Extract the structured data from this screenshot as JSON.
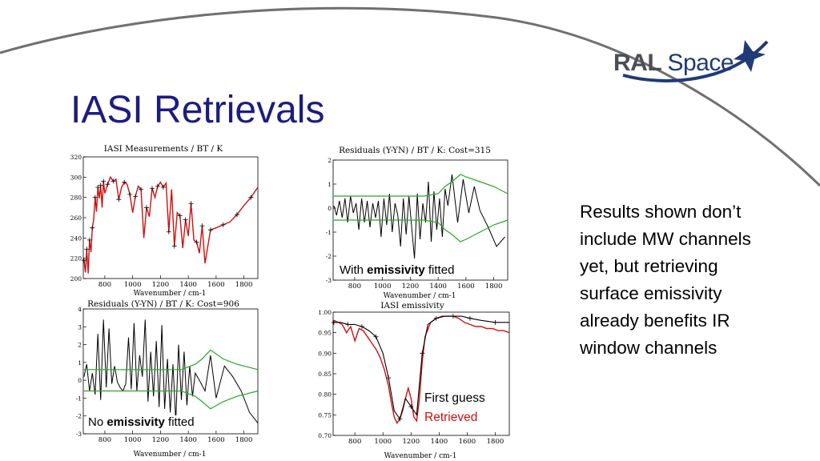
{
  "slide": {
    "title": "IASI Retrievals",
    "logo": {
      "word1": "RAL",
      "word2": "Space"
    },
    "body_text": "Results shown don’t include MW channels yet, but retrieving surface emissivity already benefits IR window channels"
  },
  "panels": {
    "measurements": {
      "title": "IASI Measurements / BT / K",
      "xlabel": "Wavenumber / cm-1"
    },
    "residuals_with": {
      "title": "Residuals (Y-YN) / BT / K: Cost=315",
      "xlabel": "Wavenumber / cm-1",
      "note_pre": "With ",
      "note_bold": "emissivity",
      "note_post": " fitted"
    },
    "residuals_no": {
      "title": "Residuals (Y-YN) / BT / K: Cost=906",
      "xlabel": "Wavenumber / cm-1",
      "note_pre": "No ",
      "note_bold": "emissivity",
      "note_post": " fitted"
    },
    "emissivity": {
      "title": "IASI emissivity",
      "xlabel": "Wavenumber / cm-1",
      "legend_first": "First guess",
      "legend_retrieved": "Retrieved"
    }
  },
  "colors": {
    "title": "#1c1c80",
    "red": "#cc1111",
    "green": "#22aa22",
    "black": "#000000"
  },
  "chart_data": [
    {
      "type": "line",
      "title": "IASI Measurements / BT / K",
      "xlabel": "Wavenumber / cm-1",
      "xlim": [
        645,
        1900
      ],
      "ylim": [
        200,
        320
      ],
      "xticks": [
        800,
        1000,
        1200,
        1400,
        1600,
        1800
      ],
      "yticks": [
        200,
        220,
        240,
        260,
        280,
        300,
        320
      ],
      "series": [
        {
          "x": [
            650,
            660,
            670,
            680,
            690,
            700,
            710,
            720,
            730,
            740,
            750,
            760,
            770,
            780,
            790,
            800,
            820,
            840,
            860,
            880,
            900,
            920,
            940,
            960,
            980,
            1000,
            1020,
            1040,
            1060,
            1080,
            1100,
            1120,
            1140,
            1160,
            1180,
            1200,
            1220,
            1240,
            1260,
            1280,
            1300,
            1320,
            1340,
            1360,
            1380,
            1400,
            1420,
            1440,
            1460,
            1480,
            1500,
            1520,
            1560,
            1600,
            1650,
            1700,
            1750,
            1800,
            1850,
            1900
          ],
          "values": [
            218,
            206,
            229,
            205,
            238,
            226,
            250,
            258,
            280,
            266,
            290,
            279,
            292,
            270,
            296,
            284,
            293,
            300,
            296,
            298,
            278,
            290,
            295,
            293,
            283,
            265,
            281,
            291,
            288,
            240,
            270,
            261,
            289,
            280,
            291,
            295,
            290,
            294,
            246,
            288,
            232,
            265,
            262,
            230,
            258,
            242,
            274,
            238,
            236,
            225,
            252,
            215,
            248,
            250,
            253,
            256,
            263,
            272,
            280,
            290
          ]
        }
      ]
    },
    {
      "type": "line",
      "title": "Residuals (Y-YN) / BT / K: Cost=315",
      "xlabel": "Wavenumber / cm-1",
      "xlim": [
        645,
        1900
      ],
      "ylim": [
        -3,
        2
      ],
      "xticks": [
        800,
        1000,
        1200,
        1400,
        1600,
        1800
      ],
      "yticks": [
        -3,
        -2,
        -1,
        0,
        1,
        2
      ],
      "series": [
        {
          "name": "residual",
          "x": [
            650,
            670,
            690,
            710,
            730,
            750,
            770,
            790,
            810,
            830,
            850,
            870,
            890,
            910,
            930,
            950,
            970,
            990,
            1010,
            1030,
            1050,
            1070,
            1090,
            1110,
            1130,
            1150,
            1170,
            1190,
            1210,
            1230,
            1250,
            1270,
            1290,
            1310,
            1330,
            1350,
            1370,
            1390,
            1410,
            1430,
            1450,
            1470,
            1500,
            1540,
            1580,
            1620,
            1660,
            1700,
            1760,
            1820,
            1880
          ],
          "values": [
            0.1,
            -0.3,
            0.3,
            -0.4,
            0.4,
            -0.6,
            0.5,
            -0.2,
            0.2,
            -0.9,
            0.4,
            -0.6,
            0.3,
            -0.8,
            0.2,
            -0.4,
            0.3,
            -1.2,
            0.4,
            -0.7,
            0.6,
            -1.0,
            0.2,
            -0.3,
            -1.6,
            0.4,
            -1.1,
            0.5,
            -0.8,
            -2.1,
            0.6,
            -1.3,
            0.2,
            -0.6,
            1.1,
            -1.4,
            0.7,
            -0.9,
            0.4,
            -1.2,
            0.8,
            0.1,
            1.4,
            -0.6,
            1.2,
            -0.2,
            0.9,
            -0.1,
            -0.8,
            -1.6,
            -1.2
          ]
        },
        {
          "name": "upper",
          "x": [
            650,
            800,
            1000,
            1200,
            1300,
            1400,
            1450,
            1500,
            1560,
            1600,
            1700,
            1800,
            1900
          ],
          "values": [
            0.5,
            0.5,
            0.5,
            0.5,
            0.5,
            0.6,
            0.9,
            1.1,
            1.4,
            1.3,
            1.1,
            0.9,
            0.6
          ]
        },
        {
          "name": "lower",
          "x": [
            650,
            800,
            1000,
            1200,
            1300,
            1400,
            1450,
            1500,
            1560,
            1600,
            1700,
            1800,
            1900
          ],
          "values": [
            -0.5,
            -0.5,
            -0.5,
            -0.5,
            -0.5,
            -0.6,
            -0.9,
            -1.1,
            -1.4,
            -1.3,
            -1.0,
            -0.7,
            -0.5
          ]
        }
      ]
    },
    {
      "type": "line",
      "title": "Residuals (Y-YN) / BT / K: Cost=906",
      "xlabel": "Wavenumber / cm-1",
      "xlim": [
        645,
        1900
      ],
      "ylim": [
        -3,
        4
      ],
      "xticks": [
        800,
        1000,
        1200,
        1400,
        1600,
        1800
      ],
      "yticks": [
        -3,
        -2,
        -1,
        0,
        1,
        2,
        3,
        4
      ],
      "series": [
        {
          "name": "residual",
          "x": [
            650,
            670,
            690,
            710,
            730,
            750,
            770,
            790,
            810,
            830,
            850,
            870,
            890,
            910,
            930,
            950,
            970,
            990,
            1010,
            1030,
            1050,
            1070,
            1090,
            1110,
            1130,
            1150,
            1170,
            1190,
            1210,
            1230,
            1250,
            1270,
            1290,
            1310,
            1330,
            1350,
            1370,
            1390,
            1410,
            1430,
            1450,
            1480,
            1520,
            1560,
            1600,
            1660,
            1720,
            1780,
            1840,
            1900
          ],
          "values": [
            0.2,
            0.9,
            -0.6,
            0.4,
            -0.8,
            2.6,
            -1.1,
            3.4,
            -0.4,
            2.9,
            -0.2,
            0.8,
            -0.1,
            -0.4,
            -0.6,
            -0.2,
            2.4,
            -0.5,
            3.2,
            -0.6,
            1.4,
            0.2,
            3.4,
            -1.2,
            1.6,
            -0.9,
            2.2,
            -1.5,
            3.1,
            -1.6,
            1.2,
            -1.8,
            0.9,
            -2.3,
            2.0,
            -1.1,
            1.6,
            -1.4,
            0.8,
            -0.9,
            0.4,
            0.0,
            -0.6,
            1.4,
            -1.0,
            0.8,
            0.2,
            -0.6,
            -1.8,
            -2.4
          ]
        },
        {
          "name": "upper",
          "x": [
            650,
            800,
            1000,
            1200,
            1350,
            1450,
            1500,
            1560,
            1650,
            1750,
            1900
          ],
          "values": [
            0.6,
            0.6,
            0.6,
            0.6,
            0.6,
            0.9,
            1.2,
            1.7,
            1.2,
            0.9,
            0.6
          ]
        },
        {
          "name": "lower",
          "x": [
            650,
            800,
            1000,
            1200,
            1350,
            1450,
            1500,
            1560,
            1650,
            1750,
            1900
          ],
          "values": [
            -0.6,
            -0.6,
            -0.6,
            -0.6,
            -0.6,
            -0.9,
            -1.2,
            -1.6,
            -1.2,
            -0.9,
            -0.6
          ]
        }
      ]
    },
    {
      "type": "line",
      "title": "IASI emissivity",
      "xlabel": "Wavenumber / cm-1",
      "xlim": [
        645,
        1900
      ],
      "ylim": [
        0.7,
        1.0
      ],
      "xticks": [
        800,
        1000,
        1200,
        1400,
        1600,
        1800
      ],
      "yticks": [
        0.7,
        0.75,
        0.8,
        0.85,
        0.9,
        0.95,
        1.0
      ],
      "series": [
        {
          "name": "Retrieved",
          "x": [
            650,
            680,
            710,
            740,
            770,
            800,
            830,
            860,
            890,
            920,
            950,
            980,
            1010,
            1040,
            1060,
            1080,
            1100,
            1120,
            1140,
            1160,
            1180,
            1200,
            1220,
            1240,
            1260,
            1280,
            1300,
            1340,
            1380,
            1420,
            1460,
            1500,
            1540,
            1580,
            1620,
            1660,
            1700,
            1740,
            1780,
            1820,
            1860,
            1900
          ],
          "values": [
            0.98,
            0.975,
            0.97,
            0.95,
            0.965,
            0.93,
            0.96,
            0.955,
            0.94,
            0.925,
            0.91,
            0.89,
            0.86,
            0.82,
            0.78,
            0.745,
            0.73,
            0.74,
            0.76,
            0.79,
            0.815,
            0.79,
            0.745,
            0.735,
            0.79,
            0.88,
            0.94,
            0.975,
            0.985,
            0.99,
            0.99,
            0.99,
            0.985,
            0.975,
            0.97,
            0.965,
            0.965,
            0.96,
            0.96,
            0.955,
            0.955,
            0.95
          ]
        },
        {
          "name": "First guess",
          "x": [
            650,
            700,
            750,
            800,
            850,
            900,
            950,
            1000,
            1040,
            1080,
            1120,
            1160,
            1200,
            1240,
            1280,
            1320,
            1380,
            1440,
            1500,
            1560,
            1620,
            1700,
            1800,
            1900
          ],
          "values": [
            0.975,
            0.975,
            0.97,
            0.97,
            0.965,
            0.955,
            0.94,
            0.9,
            0.84,
            0.76,
            0.74,
            0.79,
            0.77,
            0.75,
            0.9,
            0.97,
            0.985,
            0.99,
            0.99,
            0.99,
            0.985,
            0.98,
            0.975,
            0.975
          ]
        }
      ]
    }
  ]
}
